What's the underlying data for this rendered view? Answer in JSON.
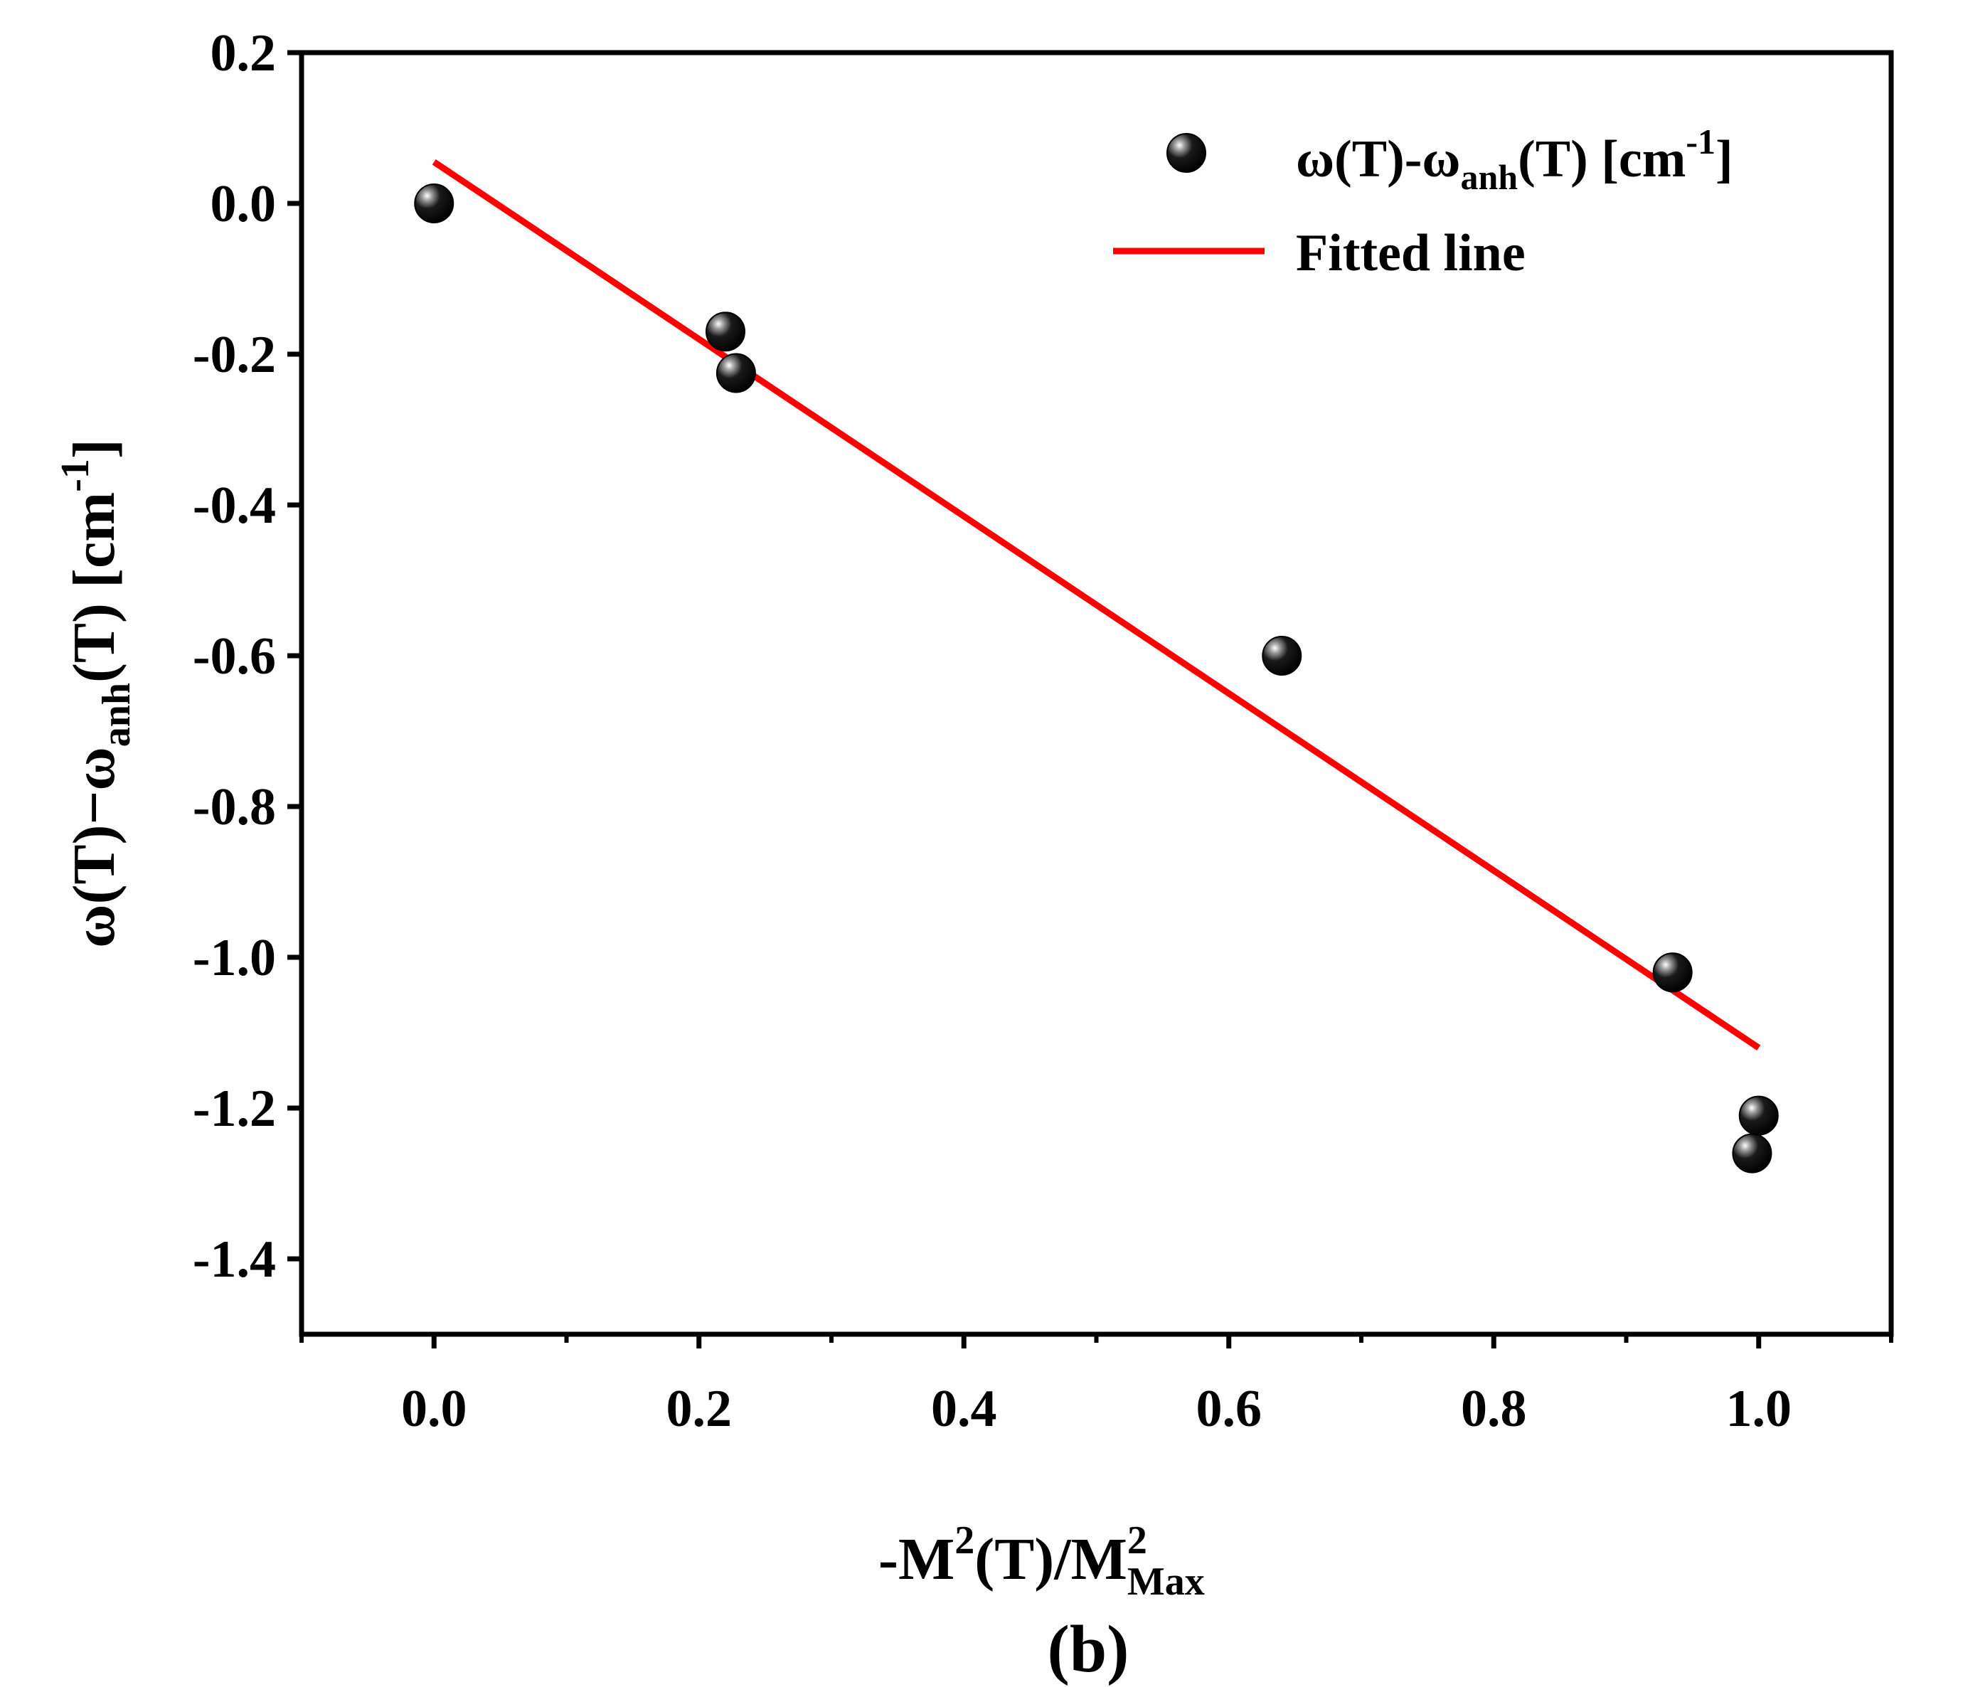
{
  "chart_data": {
    "type": "scatter",
    "title": "",
    "subtitle": "",
    "xlabel": {
      "main": "-M",
      "sup1": "2",
      "mid": "(T)/M",
      "sup2": "2",
      "sub2": "Max"
    },
    "ylabel": {
      "pre": "ω(T)−ω",
      "sub": "anh",
      "post": "(T) [cm",
      "sup": "-1",
      "end": "]"
    },
    "caption": "(b)",
    "xlim": [
      -0.1,
      1.1
    ],
    "ylim": [
      -1.5,
      0.2
    ],
    "xticks": [
      0.0,
      0.2,
      0.4,
      0.6,
      0.8,
      1.0
    ],
    "xtick_labels": [
      "0.0",
      "0.2",
      "0.4",
      "0.6",
      "0.8",
      "1.0"
    ],
    "yticks": [
      0.2,
      0.0,
      -0.2,
      -0.4,
      -0.6,
      -0.8,
      -1.0,
      -1.2,
      -1.4
    ],
    "ytick_labels": [
      "0.2",
      "0.0",
      "-0.2",
      "-0.4",
      "-0.6",
      "-0.8",
      "-1.0",
      "-1.2",
      "-1.4"
    ],
    "grid": false,
    "legend_position": "top-right",
    "series": [
      {
        "name": "ω(T)-ω_anh(T) [cm^-1]",
        "kind": "scatter",
        "color": "#000000",
        "x": [
          0.0,
          0.22,
          0.228,
          0.64,
          0.935,
          0.995,
          1.0
        ],
        "y": [
          0.0,
          -0.17,
          -0.225,
          -0.6,
          -1.02,
          -1.26,
          -1.21
        ]
      },
      {
        "name": "Fitted line",
        "kind": "line",
        "color": "#ff0000",
        "x": [
          0.0,
          1.0
        ],
        "y": [
          0.055,
          -1.12
        ]
      }
    ],
    "legend": [
      {
        "key": "scatter",
        "pre": "ω(T)-ω",
        "sub": "anh",
        "post": "(T) [cm",
        "sup": "-1",
        "end": "]"
      },
      {
        "key": "line",
        "label": "Fitted line"
      }
    ]
  }
}
